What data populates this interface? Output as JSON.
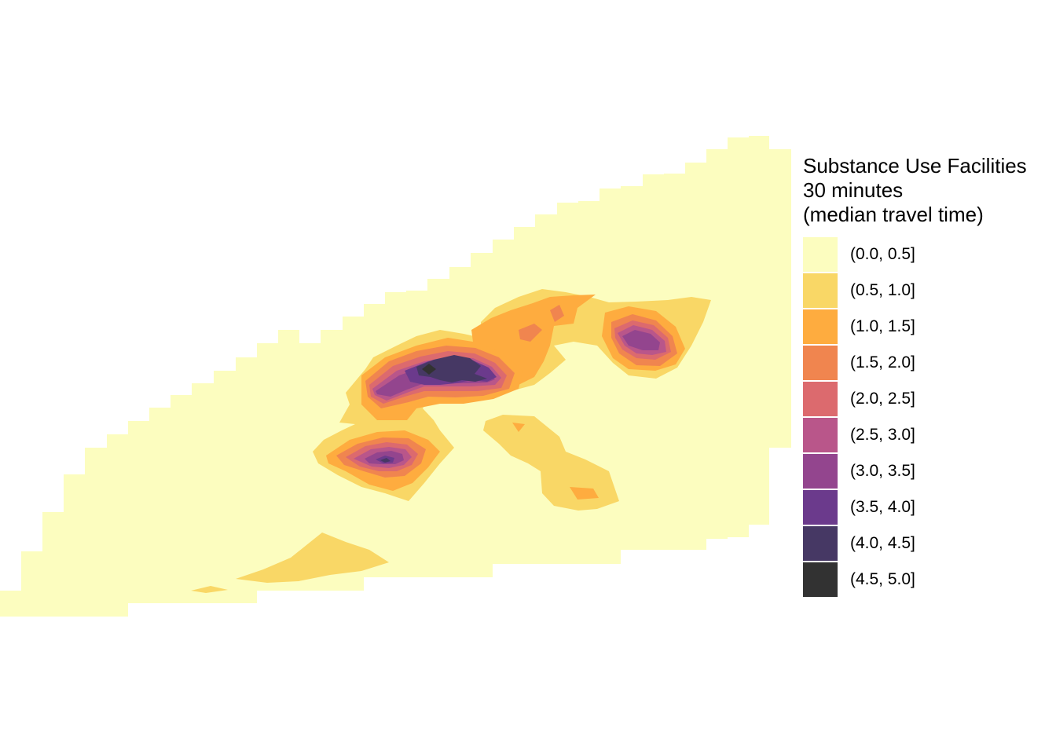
{
  "legend": {
    "title_lines": [
      "Substance Use Facilities",
      "30 minutes",
      "(median travel time)"
    ],
    "items": [
      {
        "label": "(0.0, 0.5]",
        "color": "#FCFDBF"
      },
      {
        "label": "(0.5, 1.0]",
        "color": "#F9D766"
      },
      {
        "label": "(1.0, 1.5]",
        "color": "#FEAC3F"
      },
      {
        "label": "(1.5, 2.0]",
        "color": "#F0854F"
      },
      {
        "label": "(2.0, 2.5]",
        "color": "#DC6A6E"
      },
      {
        "label": "(2.5, 3.0]",
        "color": "#B9568A"
      },
      {
        "label": "(3.0, 3.5]",
        "color": "#93458E"
      },
      {
        "label": "(3.5, 4.0]",
        "color": "#6B3A8C"
      },
      {
        "label": "(4.0, 4.5]",
        "color": "#463864"
      },
      {
        "label": "(4.5, 5.0]",
        "color": "#323232"
      }
    ]
  }
}
